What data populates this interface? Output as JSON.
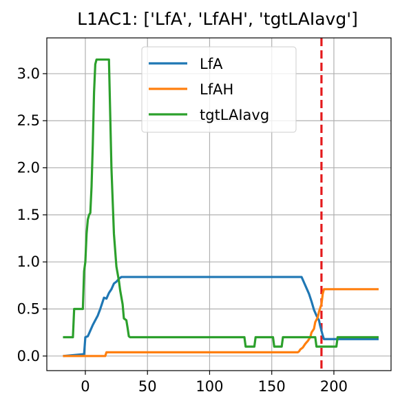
{
  "chart_data": {
    "type": "line",
    "title": "L1AC1: ['LfA', 'LfAH', 'tgtLAIavg']",
    "xlabel": "",
    "ylabel": "",
    "xlim": [
      -31,
      246
    ],
    "ylim": [
      -0.155,
      3.38
    ],
    "xticks": [
      0,
      50,
      100,
      150,
      200
    ],
    "yticks": [
      0.0,
      0.5,
      1.0,
      1.5,
      2.0,
      2.5,
      3.0
    ],
    "xtick_labels": [
      "0",
      "50",
      "100",
      "150",
      "200"
    ],
    "ytick_labels": [
      "0.0",
      "0.5",
      "1.0",
      "1.5",
      "2.0",
      "2.5",
      "3.0"
    ],
    "grid": true,
    "legend_position": "top-center",
    "vline": {
      "x": 190,
      "color": "#e41a1c",
      "style": "dashed"
    },
    "series": [
      {
        "name": "LfA",
        "color": "#1f77b4",
        "points": [
          [
            -18,
            0.0
          ],
          [
            -1,
            0.02
          ],
          [
            0,
            0.2
          ],
          [
            2,
            0.21
          ],
          [
            4,
            0.27
          ],
          [
            6,
            0.33
          ],
          [
            8,
            0.38
          ],
          [
            10,
            0.43
          ],
          [
            12,
            0.5
          ],
          [
            14,
            0.58
          ],
          [
            15,
            0.62
          ],
          [
            17,
            0.61
          ],
          [
            19,
            0.67
          ],
          [
            21,
            0.71
          ],
          [
            23,
            0.77
          ],
          [
            25,
            0.79
          ],
          [
            27,
            0.82
          ],
          [
            29,
            0.84
          ],
          [
            171,
            0.84
          ],
          [
            174,
            0.84
          ],
          [
            176,
            0.78
          ],
          [
            178,
            0.72
          ],
          [
            180,
            0.66
          ],
          [
            182,
            0.58
          ],
          [
            184,
            0.49
          ],
          [
            186,
            0.43
          ],
          [
            188,
            0.38
          ],
          [
            189,
            0.32
          ],
          [
            191,
            0.22
          ],
          [
            192,
            0.18
          ],
          [
            236,
            0.18
          ]
        ]
      },
      {
        "name": "LfAH",
        "color": "#ff7f0e",
        "points": [
          [
            -18,
            0.0
          ],
          [
            16,
            0.0
          ],
          [
            17,
            0.04
          ],
          [
            171,
            0.04
          ],
          [
            172,
            0.05
          ],
          [
            173,
            0.07
          ],
          [
            175,
            0.09
          ],
          [
            177,
            0.13
          ],
          [
            179,
            0.16
          ],
          [
            181,
            0.2
          ],
          [
            182,
            0.25
          ],
          [
            184,
            0.29
          ],
          [
            185,
            0.36
          ],
          [
            187,
            0.41
          ],
          [
            188,
            0.47
          ],
          [
            190,
            0.55
          ],
          [
            191,
            0.66
          ],
          [
            192,
            0.71
          ],
          [
            236,
            0.71
          ]
        ]
      },
      {
        "name": "tgtLAIavg",
        "color": "#2ca02c",
        "points": [
          [
            -18,
            0.2
          ],
          [
            -10,
            0.2
          ],
          [
            -9,
            0.5
          ],
          [
            -2,
            0.5
          ],
          [
            -1,
            0.9
          ],
          [
            0,
            1.0
          ],
          [
            1,
            1.3
          ],
          [
            2,
            1.45
          ],
          [
            3,
            1.5
          ],
          [
            4,
            1.52
          ],
          [
            5,
            1.8
          ],
          [
            6,
            2.25
          ],
          [
            7,
            2.8
          ],
          [
            8,
            3.1
          ],
          [
            9,
            3.15
          ],
          [
            19,
            3.15
          ],
          [
            21,
            2.0
          ],
          [
            23,
            1.3
          ],
          [
            25,
            0.95
          ],
          [
            27,
            0.8
          ],
          [
            28,
            0.7
          ],
          [
            30,
            0.55
          ],
          [
            31,
            0.4
          ],
          [
            33,
            0.38
          ],
          [
            34,
            0.3
          ],
          [
            35,
            0.21
          ],
          [
            36,
            0.2
          ],
          [
            128,
            0.2
          ],
          [
            129,
            0.1
          ],
          [
            136,
            0.1
          ],
          [
            137,
            0.2
          ],
          [
            151,
            0.2
          ],
          [
            152,
            0.1
          ],
          [
            158,
            0.1
          ],
          [
            159,
            0.2
          ],
          [
            185,
            0.2
          ],
          [
            186,
            0.1
          ],
          [
            189,
            0.1
          ],
          [
            190,
            0.1
          ],
          [
            202,
            0.1
          ],
          [
            203,
            0.2
          ],
          [
            236,
            0.2
          ]
        ]
      }
    ]
  }
}
